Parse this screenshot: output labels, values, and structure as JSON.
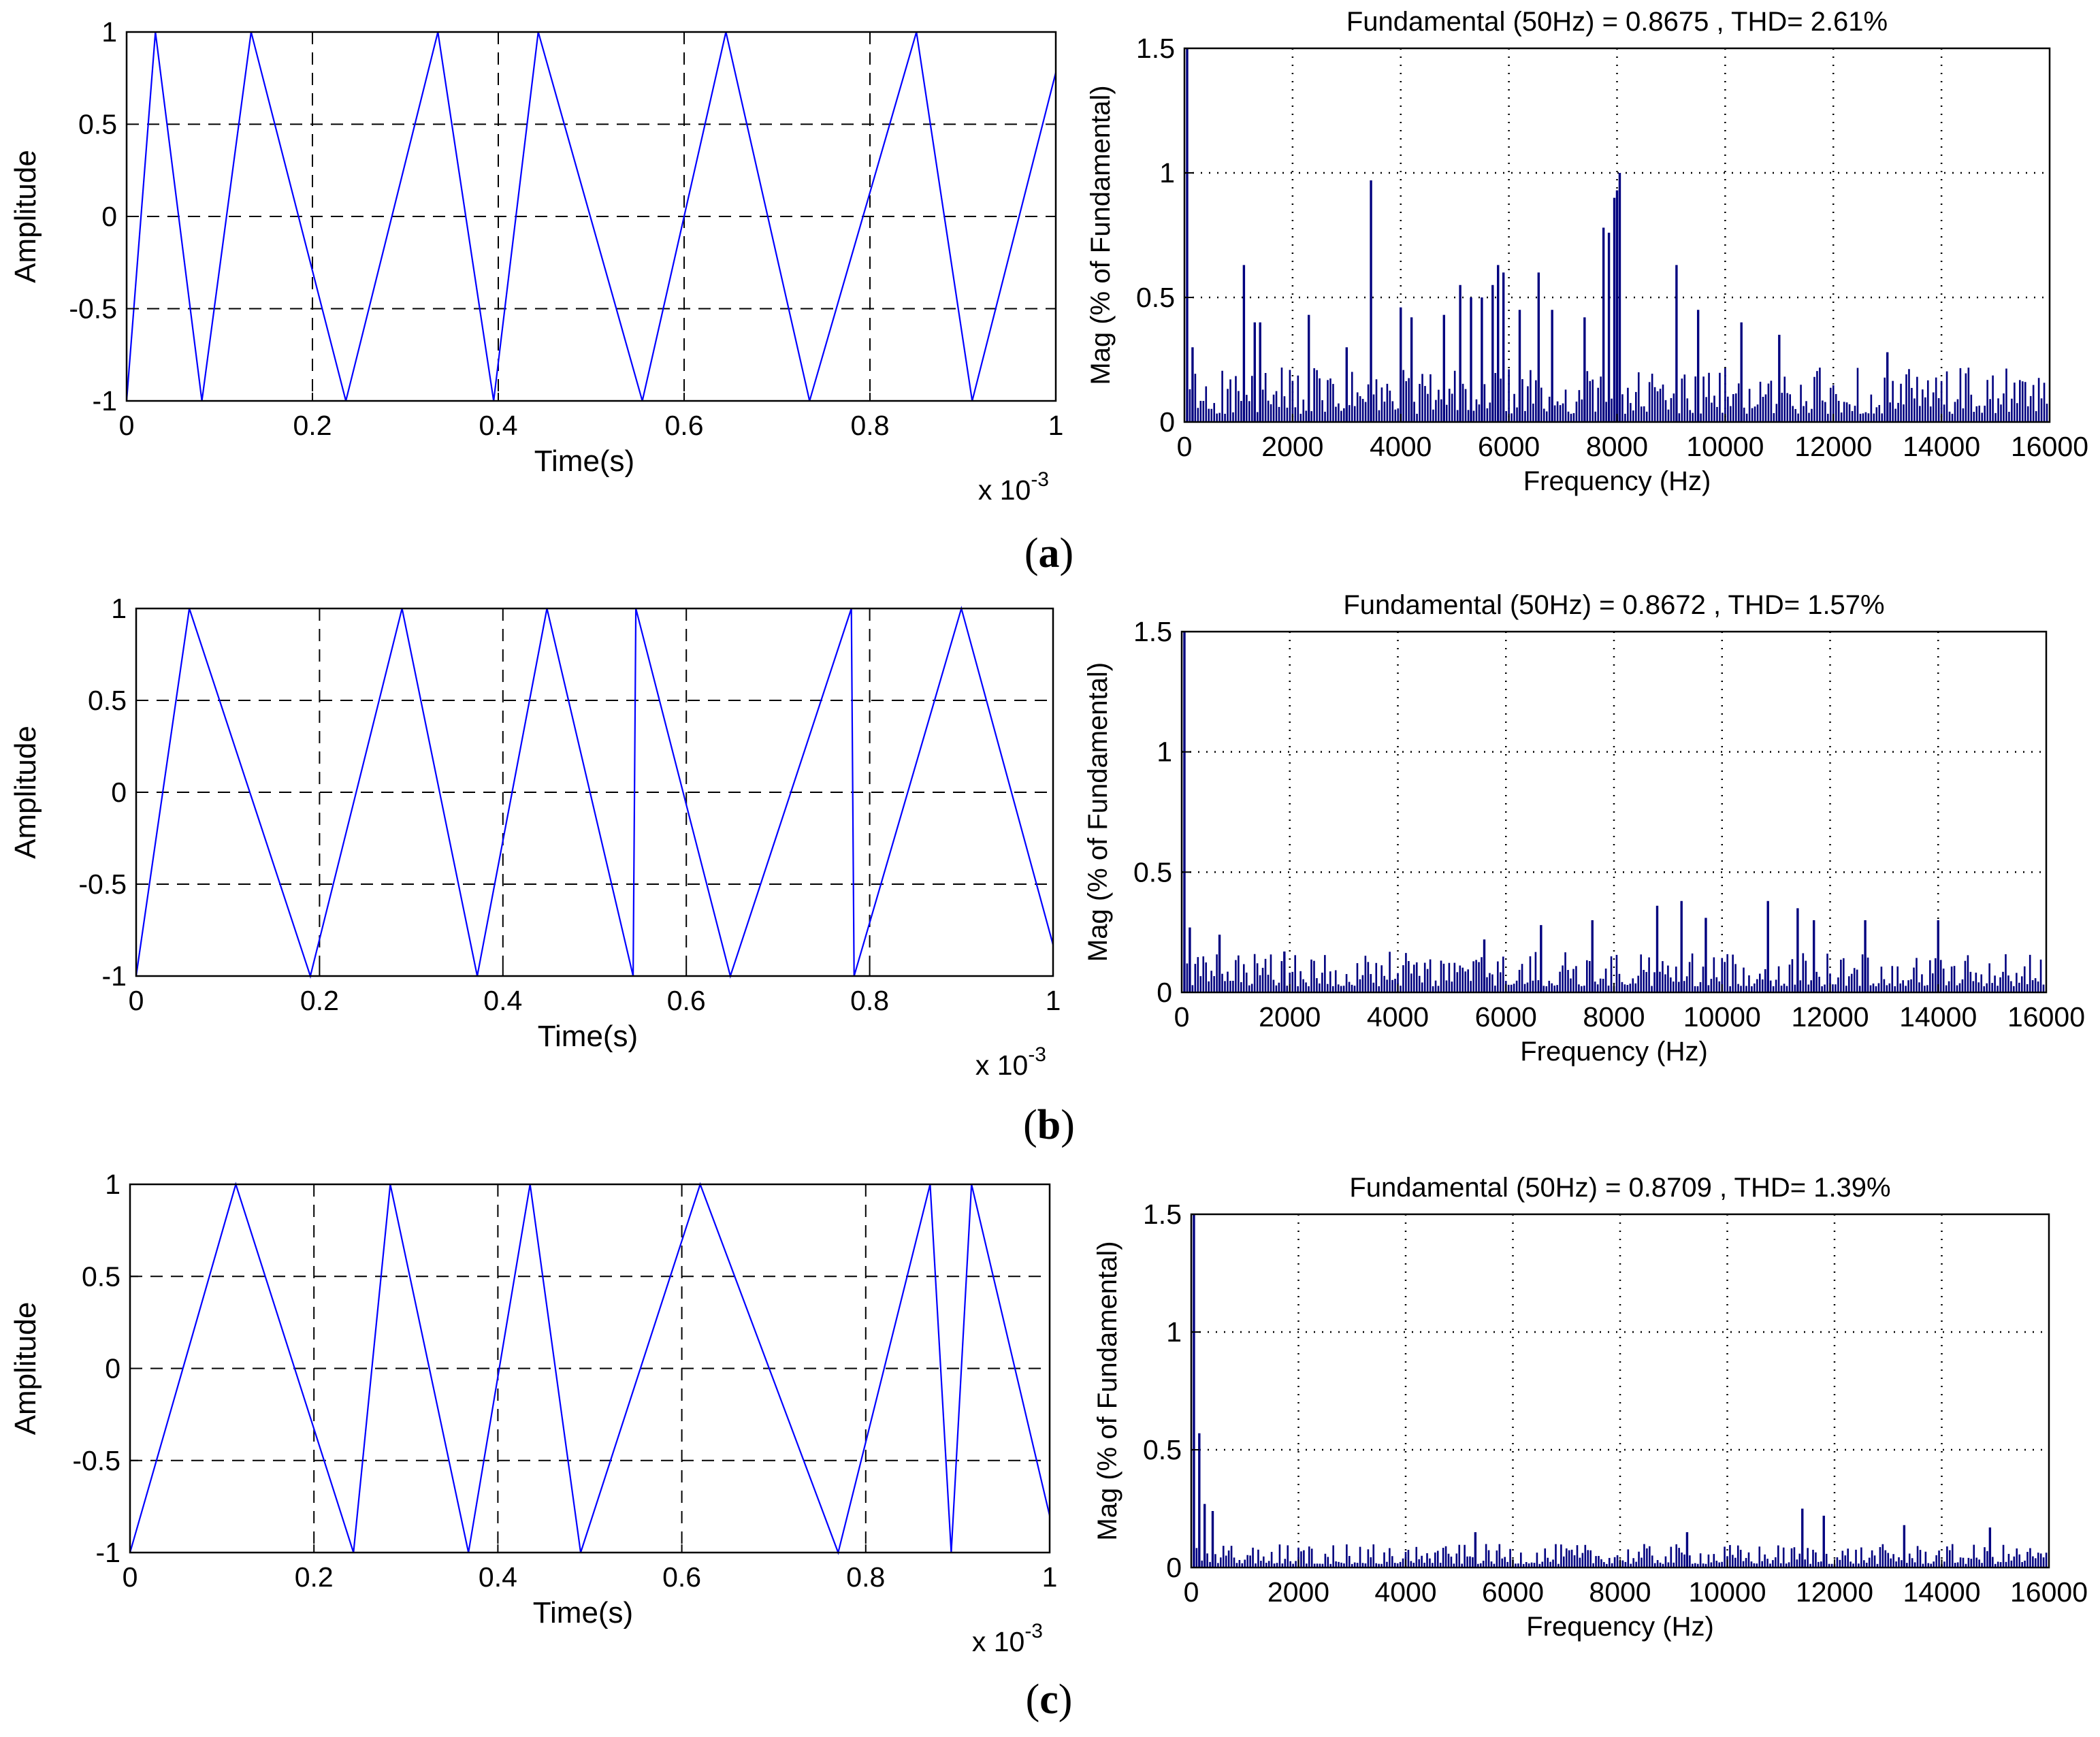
{
  "panels": [
    {
      "open": "(",
      "letter": "a",
      "close": ")"
    },
    {
      "open": "(",
      "letter": "b",
      "close": ")"
    },
    {
      "open": "(",
      "letter": "c",
      "close": ")"
    }
  ],
  "colors": {
    "waveform": "#0000ff",
    "spectrum": "#00007f",
    "axis": "#000000",
    "grid": "#000000"
  },
  "chart_data": [
    {
      "type": "line",
      "panel": "a",
      "xlabel": "Time(s)",
      "ylabel": "Amplitude",
      "x_multiplier": {
        "base": "x 10",
        "exponent": "-3"
      },
      "xlim": [
        0,
        1
      ],
      "ylim": [
        -1,
        1
      ],
      "xticks": [
        "0",
        "0.2",
        "0.4",
        "0.6",
        "0.8",
        "1"
      ],
      "yticks": [
        "1",
        "0.5",
        "0",
        "-0.5",
        "-1"
      ],
      "grid": "dashed",
      "legend": "none",
      "series": [
        {
          "x": [
            0,
            0.031,
            0.081,
            0.134,
            0.236,
            0.335,
            0.395,
            0.443,
            0.555,
            0.645,
            0.735,
            0.85,
            0.91,
            1.0
          ],
          "y": [
            -1,
            1,
            -1,
            1,
            -1,
            1,
            -1,
            1,
            -1,
            1,
            -1,
            1,
            -1,
            0.78
          ]
        }
      ]
    },
    {
      "type": "bar",
      "panel": "a",
      "title": "Fundamental (50Hz) = 0.8675 , THD= 2.61%",
      "xlabel": "Frequency (Hz)",
      "ylabel": "Mag (% of Fundamental)",
      "xlim": [
        0,
        16000
      ],
      "ylim": [
        0,
        1.5
      ],
      "xticks": [
        "0",
        "2000",
        "4000",
        "6000",
        "8000",
        "10000",
        "12000",
        "14000",
        "16000"
      ],
      "yticks": [
        "1.5",
        "1",
        "0.5",
        "0"
      ],
      "grid": "dotted",
      "legend": "none",
      "peaks": [
        [
          50,
          1.5
        ],
        [
          150,
          0.3
        ],
        [
          1100,
          0.63
        ],
        [
          1300,
          0.4
        ],
        [
          1400,
          0.4
        ],
        [
          2300,
          0.43
        ],
        [
          3000,
          0.3
        ],
        [
          3450,
          0.97
        ],
        [
          4000,
          0.46
        ],
        [
          4200,
          0.42
        ],
        [
          4800,
          0.43
        ],
        [
          5100,
          0.55
        ],
        [
          5300,
          0.5
        ],
        [
          5500,
          0.5
        ],
        [
          5700,
          0.55
        ],
        [
          5800,
          0.63
        ],
        [
          5900,
          0.6
        ],
        [
          6200,
          0.45
        ],
        [
          6550,
          0.6
        ],
        [
          6800,
          0.45
        ],
        [
          7400,
          0.42
        ],
        [
          7750,
          0.78
        ],
        [
          7850,
          0.76
        ],
        [
          7950,
          0.9
        ],
        [
          8000,
          0.93
        ],
        [
          8050,
          1.0
        ],
        [
          9100,
          0.63
        ],
        [
          9500,
          0.45
        ],
        [
          10300,
          0.4
        ],
        [
          11000,
          0.35
        ],
        [
          13000,
          0.28
        ]
      ],
      "noise_floor": 0.22
    },
    {
      "type": "line",
      "panel": "b",
      "xlabel": "Time(s)",
      "ylabel": "Amplitude",
      "x_multiplier": {
        "base": "x 10",
        "exponent": "-3"
      },
      "xlim": [
        0,
        1
      ],
      "ylim": [
        -1,
        1
      ],
      "xticks": [
        "0",
        "0.2",
        "0.4",
        "0.6",
        "0.8",
        "1"
      ],
      "yticks": [
        "1",
        "0.5",
        "0",
        "-0.5",
        "-1"
      ],
      "grid": "dashed",
      "legend": "none",
      "series": [
        {
          "x": [
            0,
            0.058,
            0.19,
            0.29,
            0.372,
            0.448,
            0.542,
            0.545,
            0.648,
            0.78,
            0.783,
            0.9,
            1.0
          ],
          "y": [
            -1,
            1,
            -1,
            1,
            -1,
            1,
            -1,
            1,
            -1,
            1,
            -1,
            1,
            -0.83
          ]
        }
      ]
    },
    {
      "type": "bar",
      "panel": "b",
      "title": "Fundamental (50Hz) = 0.8672 , THD= 1.57%",
      "xlabel": "Frequency (Hz)",
      "ylabel": "Mag (% of Fundamental)",
      "xlim": [
        0,
        16000
      ],
      "ylim": [
        0,
        1.5
      ],
      "xticks": [
        "0",
        "2000",
        "4000",
        "6000",
        "8000",
        "10000",
        "12000",
        "14000",
        "16000"
      ],
      "yticks": [
        "1.5",
        "1",
        "0.5",
        "0"
      ],
      "grid": "dotted",
      "legend": "none",
      "peaks": [
        [
          50,
          1.5
        ],
        [
          150,
          0.27
        ],
        [
          700,
          0.24
        ],
        [
          1900,
          0.17
        ],
        [
          5600,
          0.22
        ],
        [
          6650,
          0.28
        ],
        [
          7600,
          0.3
        ],
        [
          8800,
          0.36
        ],
        [
          9250,
          0.38
        ],
        [
          9700,
          0.31
        ],
        [
          10850,
          0.38
        ],
        [
          11400,
          0.35
        ],
        [
          11700,
          0.3
        ],
        [
          12650,
          0.3
        ],
        [
          14000,
          0.3
        ]
      ],
      "noise_floor": 0.17
    },
    {
      "type": "line",
      "panel": "c",
      "xlabel": "Time(s)",
      "ylabel": "Amplitude",
      "x_multiplier": {
        "base": "x 10",
        "exponent": "-3"
      },
      "xlim": [
        0,
        1
      ],
      "ylim": [
        -1,
        1
      ],
      "xticks": [
        "0",
        "0.2",
        "0.4",
        "0.6",
        "0.8",
        "1"
      ],
      "yticks": [
        "1",
        "0.5",
        "0",
        "-0.5",
        "-1"
      ],
      "grid": "dashed",
      "legend": "none",
      "series": [
        {
          "x": [
            0,
            0.115,
            0.243,
            0.283,
            0.368,
            0.435,
            0.49,
            0.62,
            0.77,
            0.87,
            0.893,
            0.915,
            1.0
          ],
          "y": [
            -1,
            1,
            -1,
            1,
            -1,
            1,
            -1,
            1,
            -1,
            1,
            -1,
            1,
            -0.8
          ]
        }
      ]
    },
    {
      "type": "bar",
      "panel": "c",
      "title": "Fundamental (50Hz) = 0.8709 , THD= 1.39%",
      "xlabel": "Frequency (Hz)",
      "ylabel": "Mag (% of Fundamental)",
      "xlim": [
        0,
        16000
      ],
      "ylim": [
        0,
        1.5
      ],
      "xticks": [
        "0",
        "2000",
        "4000",
        "6000",
        "8000",
        "10000",
        "12000",
        "14000",
        "16000"
      ],
      "yticks": [
        "1.5",
        "1",
        "0.5",
        "0"
      ],
      "grid": "dotted",
      "legend": "none",
      "peaks": [
        [
          50,
          1.5
        ],
        [
          150,
          0.57
        ],
        [
          250,
          0.27
        ],
        [
          400,
          0.24
        ],
        [
          5300,
          0.15
        ],
        [
          9250,
          0.15
        ],
        [
          11400,
          0.25
        ],
        [
          11800,
          0.22
        ],
        [
          13300,
          0.18
        ],
        [
          14900,
          0.17
        ]
      ],
      "noise_floor": 0.1
    }
  ]
}
